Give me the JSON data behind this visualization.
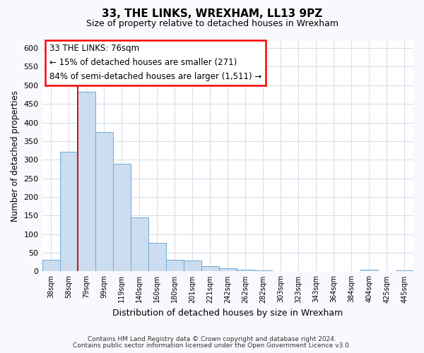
{
  "title": "33, THE LINKS, WREXHAM, LL13 9PZ",
  "subtitle": "Size of property relative to detached houses in Wrexham",
  "xlabel": "Distribution of detached houses by size in Wrexham",
  "ylabel": "Number of detached properties",
  "bar_labels": [
    "38sqm",
    "58sqm",
    "79sqm",
    "99sqm",
    "119sqm",
    "140sqm",
    "160sqm",
    "180sqm",
    "201sqm",
    "221sqm",
    "242sqm",
    "262sqm",
    "282sqm",
    "303sqm",
    "323sqm",
    "343sqm",
    "364sqm",
    "384sqm",
    "404sqm",
    "425sqm",
    "445sqm"
  ],
  "bar_values": [
    32,
    322,
    483,
    375,
    290,
    144,
    76,
    32,
    30,
    15,
    8,
    4,
    2,
    1,
    1,
    1,
    0,
    0,
    5,
    0,
    3
  ],
  "bar_color": "#ccddf0",
  "bar_edge_color": "#6aaad4",
  "vline_color": "#cc0000",
  "annotation_line1": "33 THE LINKS: 76sqm",
  "annotation_line2": "← 15% of detached houses are smaller (271)",
  "annotation_line3": "84% of semi-detached houses are larger (1,511) →",
  "ylim": [
    0,
    620
  ],
  "yticks": [
    0,
    50,
    100,
    150,
    200,
    250,
    300,
    350,
    400,
    450,
    500,
    550,
    600
  ],
  "footer_line1": "Contains HM Land Registry data © Crown copyright and database right 2024.",
  "footer_line2": "Contains public sector information licensed under the Open Government Licence v3.0.",
  "fig_bg_color": "#f7f9fc",
  "plot_bg_color": "#ffffff",
  "grid_color": "#d4dce8"
}
